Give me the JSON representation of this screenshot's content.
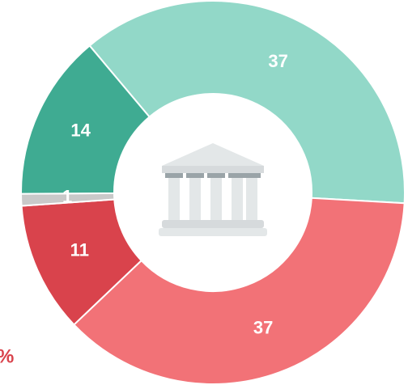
{
  "chart_data": {
    "type": "donut",
    "categories": [
      null,
      null,
      null,
      null,
      null
    ],
    "values": [
      37,
      37,
      11,
      1,
      14
    ],
    "colors": [
      "#92d8c8",
      "#f27277",
      "#d9434c",
      "#c9c9c9",
      "#3fab92"
    ],
    "annotation": "%"
  }
}
